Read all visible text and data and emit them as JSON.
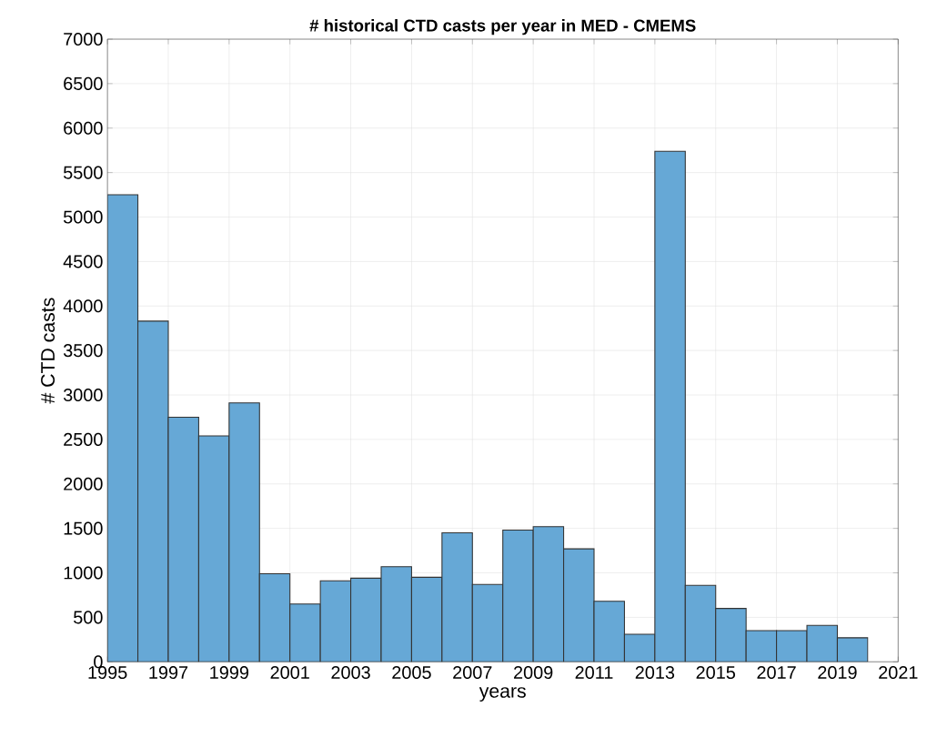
{
  "chart_data": {
    "type": "histogram",
    "title": "# historical CTD casts per year in MED - CMEMS",
    "xlabel": "years",
    "ylabel": "# CTD casts",
    "bins": [
      1995,
      1996,
      1997,
      1998,
      1999,
      2000,
      2001,
      2002,
      2003,
      2004,
      2005,
      2006,
      2007,
      2008,
      2009,
      2010,
      2011,
      2012,
      2013,
      2014,
      2015,
      2016,
      2017,
      2018,
      2019,
      2020
    ],
    "values": [
      5250,
      3830,
      2750,
      2540,
      2910,
      990,
      650,
      910,
      940,
      1070,
      950,
      1450,
      870,
      1480,
      1520,
      1270,
      680,
      310,
      5740,
      860,
      600,
      350,
      350,
      410,
      270
    ],
    "color": "#66a8d6",
    "xlim": [
      1995,
      2021
    ],
    "xticks": [
      1995,
      1997,
      1999,
      2001,
      2003,
      2005,
      2007,
      2009,
      2011,
      2013,
      2015,
      2017,
      2019,
      2021
    ],
    "ylim": [
      0,
      7000
    ],
    "yticks": [
      0,
      500,
      1000,
      1500,
      2000,
      2500,
      3000,
      3500,
      4000,
      4500,
      5000,
      5500,
      6000,
      6500,
      7000
    ],
    "grid": true
  }
}
